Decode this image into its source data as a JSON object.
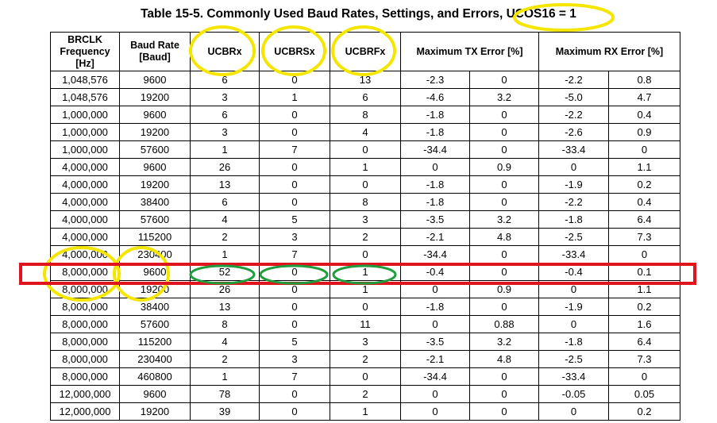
{
  "title": "Table 15-5. Commonly Used Baud Rates, Settings, and Errors, UCOS16 = 1",
  "headers": {
    "brclk": [
      "BRCLK",
      "Frequency",
      "[Hz]"
    ],
    "baud": [
      "Baud Rate",
      "[Baud]"
    ],
    "ucbrx": "UCBRx",
    "ucbrsx": "UCBRSx",
    "ucbrfx": "UCBRFx",
    "tx_error": "Maximum TX Error [%]",
    "rx_error": "Maximum RX Error [%]"
  },
  "rows": [
    [
      "1,048,576",
      "9600",
      "6",
      "0",
      "13",
      "-2.3",
      "0",
      "-2.2",
      "0.8"
    ],
    [
      "1,048,576",
      "19200",
      "3",
      "1",
      "6",
      "-4.6",
      "3.2",
      "-5.0",
      "4.7"
    ],
    [
      "1,000,000",
      "9600",
      "6",
      "0",
      "8",
      "-1.8",
      "0",
      "-2.2",
      "0.4"
    ],
    [
      "1,000,000",
      "19200",
      "3",
      "0",
      "4",
      "-1.8",
      "0",
      "-2.6",
      "0.9"
    ],
    [
      "1,000,000",
      "57600",
      "1",
      "7",
      "0",
      "-34.4",
      "0",
      "-33.4",
      "0"
    ],
    [
      "4,000,000",
      "9600",
      "26",
      "0",
      "1",
      "0",
      "0.9",
      "0",
      "1.1"
    ],
    [
      "4,000,000",
      "19200",
      "13",
      "0",
      "0",
      "-1.8",
      "0",
      "-1.9",
      "0.2"
    ],
    [
      "4,000,000",
      "38400",
      "6",
      "0",
      "8",
      "-1.8",
      "0",
      "-2.2",
      "0.4"
    ],
    [
      "4,000,000",
      "57600",
      "4",
      "5",
      "3",
      "-3.5",
      "3.2",
      "-1.8",
      "6.4"
    ],
    [
      "4,000,000",
      "115200",
      "2",
      "3",
      "2",
      "-2.1",
      "4.8",
      "-2.5",
      "7.3"
    ],
    [
      "4,000,000",
      "230400",
      "1",
      "7",
      "0",
      "-34.4",
      "0",
      "-33.4",
      "0"
    ],
    [
      "8,000,000",
      "9600",
      "52",
      "0",
      "1",
      "-0.4",
      "0",
      "-0.4",
      "0.1"
    ],
    [
      "8,000,000",
      "19200",
      "26",
      "0",
      "1",
      "0",
      "0.9",
      "0",
      "1.1"
    ],
    [
      "8,000,000",
      "38400",
      "13",
      "0",
      "0",
      "-1.8",
      "0",
      "-1.9",
      "0.2"
    ],
    [
      "8,000,000",
      "57600",
      "8",
      "0",
      "11",
      "0",
      "0.88",
      "0",
      "1.6"
    ],
    [
      "8,000,000",
      "115200",
      "4",
      "5",
      "3",
      "-3.5",
      "3.2",
      "-1.8",
      "6.4"
    ],
    [
      "8,000,000",
      "230400",
      "2",
      "3",
      "2",
      "-2.1",
      "4.8",
      "-2.5",
      "7.3"
    ],
    [
      "8,000,000",
      "460800",
      "1",
      "7",
      "0",
      "-34.4",
      "0",
      "-33.4",
      "0"
    ],
    [
      "12,000,000",
      "9600",
      "78",
      "0",
      "2",
      "0",
      "0",
      "-0.05",
      "0.05"
    ],
    [
      "12,000,000",
      "19200",
      "39",
      "0",
      "1",
      "0",
      "0",
      "0",
      "0.2"
    ]
  ],
  "colors": {
    "highlight_row_box": "#e0141e",
    "header_circle": "#f5e600",
    "value_circle": "#1e9e3c"
  }
}
